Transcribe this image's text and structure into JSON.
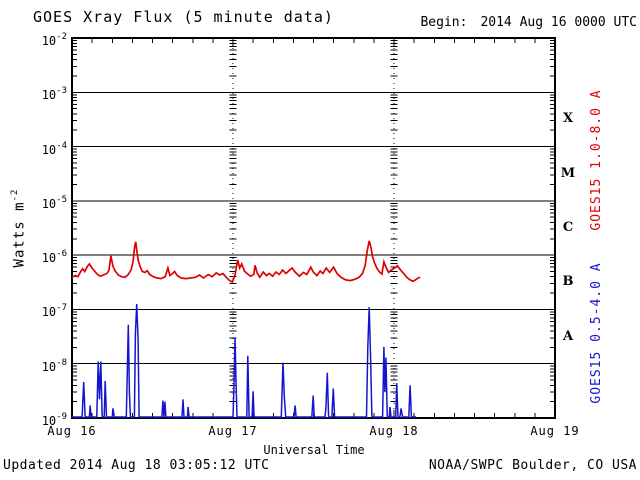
{
  "header": {
    "title": "GOES Xray Flux (5 minute data)",
    "begin_label": "Begin:",
    "begin_value": "2014 Aug 16 0000 UTC"
  },
  "footer": {
    "updated": "Updated 2014 Aug 18 03:05:12 UTC",
    "source": "NOAA/SWPC Boulder, CO USA"
  },
  "colors": {
    "long_channel": "#e00000",
    "short_channel": "#1515d0",
    "axis": "#000000",
    "background": "#ffffff"
  },
  "chart_data": {
    "type": "line",
    "title": "GOES Xray Flux (5 minute data)",
    "xlabel": "Universal Time",
    "ylabel": "Watts m^-2",
    "x_unit": "hours since 2014 Aug 16 0000 UTC",
    "x_range_hours": [
      0,
      72
    ],
    "x_ticks": [
      {
        "hours": 0,
        "label": "Aug 16"
      },
      {
        "hours": 24,
        "label": "Aug 17"
      },
      {
        "hours": 48,
        "label": "Aug 18"
      },
      {
        "hours": 72,
        "label": "Aug 19"
      }
    ],
    "x_minor_tick_interval_hours": 3,
    "day_gridlines_hours": [
      24,
      48
    ],
    "y_scale": "log",
    "ylim": [
      1e-09,
      0.01
    ],
    "y_tick_exponents": [
      -2,
      -3,
      -4,
      -5,
      -6,
      -7,
      -8,
      -9
    ],
    "grid": {
      "horizontal_decade_lines": true,
      "vertical_day_lines_dotted": true
    },
    "legend_position": "right-rotated",
    "flare_classes": [
      {
        "label": "X",
        "log10_center": -3.5
      },
      {
        "label": "M",
        "log10_center": -4.5
      },
      {
        "label": "C",
        "log10_center": -5.5
      },
      {
        "label": "B",
        "log10_center": -6.5
      },
      {
        "label": "A",
        "log10_center": -7.5
      }
    ],
    "series": [
      {
        "name": "GOES15 1.0-8.0 A",
        "color": "#e00000",
        "points": [
          [
            0.0,
            3.9e-07
          ],
          [
            0.5,
            4.2e-07
          ],
          [
            0.9,
            4e-07
          ],
          [
            1.3,
            5e-07
          ],
          [
            1.6,
            5.6e-07
          ],
          [
            1.9,
            5e-07
          ],
          [
            2.3,
            6.2e-07
          ],
          [
            2.6,
            6.9e-07
          ],
          [
            3.0,
            5.8e-07
          ],
          [
            3.4,
            5e-07
          ],
          [
            3.8,
            4.4e-07
          ],
          [
            4.2,
            4.1e-07
          ],
          [
            4.7,
            4.3e-07
          ],
          [
            5.2,
            4.6e-07
          ],
          [
            5.5,
            5.2e-07
          ],
          [
            5.8,
            9.7e-07
          ],
          [
            6.1,
            6.3e-07
          ],
          [
            6.4,
            5.2e-07
          ],
          [
            6.9,
            4.3e-07
          ],
          [
            7.4,
            4e-07
          ],
          [
            7.9,
            3.9e-07
          ],
          [
            8.4,
            4.4e-07
          ],
          [
            8.8,
            5.3e-07
          ],
          [
            9.1,
            7.5e-07
          ],
          [
            9.35,
            1.45e-06
          ],
          [
            9.5,
            1.76e-06
          ],
          [
            9.7,
            1.1e-06
          ],
          [
            9.9,
            7.8e-07
          ],
          [
            10.2,
            6e-07
          ],
          [
            10.5,
            5e-07
          ],
          [
            10.9,
            4.8e-07
          ],
          [
            11.2,
            5.2e-07
          ],
          [
            11.6,
            4.4e-07
          ],
          [
            12.1,
            4e-07
          ],
          [
            12.7,
            3.8e-07
          ],
          [
            13.3,
            3.7e-07
          ],
          [
            13.9,
            4e-07
          ],
          [
            14.3,
            5.8e-07
          ],
          [
            14.6,
            4.2e-07
          ],
          [
            15.0,
            4.6e-07
          ],
          [
            15.3,
            5e-07
          ],
          [
            15.7,
            4.2e-07
          ],
          [
            16.3,
            3.8e-07
          ],
          [
            17.0,
            3.7e-07
          ],
          [
            17.7,
            3.8e-07
          ],
          [
            18.4,
            3.9e-07
          ],
          [
            19.0,
            4.3e-07
          ],
          [
            19.6,
            3.8e-07
          ],
          [
            20.3,
            4.4e-07
          ],
          [
            20.9,
            4e-07
          ],
          [
            21.5,
            4.7e-07
          ],
          [
            22.0,
            4.3e-07
          ],
          [
            22.5,
            4.6e-07
          ],
          [
            23.0,
            3.9e-07
          ],
          [
            23.5,
            3.4e-07
          ],
          [
            23.9,
            3.2e-07
          ],
          [
            24.3,
            4.3e-07
          ],
          [
            24.7,
            8.1e-07
          ],
          [
            25.0,
            5.8e-07
          ],
          [
            25.3,
            6.9e-07
          ],
          [
            25.7,
            5.1e-07
          ],
          [
            26.1,
            4.6e-07
          ],
          [
            26.6,
            4.1e-07
          ],
          [
            27.1,
            4.4e-07
          ],
          [
            27.3,
            6.5e-07
          ],
          [
            27.6,
            4.7e-07
          ],
          [
            28.0,
            3.9e-07
          ],
          [
            28.5,
            4.9e-07
          ],
          [
            29.0,
            4.2e-07
          ],
          [
            29.4,
            4.6e-07
          ],
          [
            29.9,
            4.1e-07
          ],
          [
            30.4,
            4.9e-07
          ],
          [
            30.9,
            4.4e-07
          ],
          [
            31.4,
            5.3e-07
          ],
          [
            31.9,
            4.6e-07
          ],
          [
            32.3,
            5.1e-07
          ],
          [
            32.8,
            5.8e-07
          ],
          [
            33.3,
            4.8e-07
          ],
          [
            33.9,
            4.1e-07
          ],
          [
            34.5,
            4.8e-07
          ],
          [
            35.0,
            4.4e-07
          ],
          [
            35.6,
            6e-07
          ],
          [
            36.0,
            4.8e-07
          ],
          [
            36.5,
            4.2e-07
          ],
          [
            37.0,
            5.1e-07
          ],
          [
            37.4,
            4.6e-07
          ],
          [
            37.9,
            5.8e-07
          ],
          [
            38.4,
            4.8e-07
          ],
          [
            39.0,
            6e-07
          ],
          [
            39.5,
            4.6e-07
          ],
          [
            40.1,
            3.9e-07
          ],
          [
            40.8,
            3.5e-07
          ],
          [
            41.5,
            3.4e-07
          ],
          [
            42.2,
            3.6e-07
          ],
          [
            42.8,
            3.9e-07
          ],
          [
            43.3,
            4.6e-07
          ],
          [
            43.7,
            6.5e-07
          ],
          [
            44.0,
            1.2e-06
          ],
          [
            44.3,
            1.83e-06
          ],
          [
            44.55,
            1.4e-06
          ],
          [
            44.8,
            9.5e-07
          ],
          [
            45.1,
            7.2e-07
          ],
          [
            45.5,
            5.6e-07
          ],
          [
            45.9,
            4.8e-07
          ],
          [
            46.2,
            4.5e-07
          ],
          [
            46.5,
            7.5e-07
          ],
          [
            46.8,
            6e-07
          ],
          [
            47.2,
            4.8e-07
          ],
          [
            47.6,
            5.3e-07
          ],
          [
            48.1,
            5.8e-07
          ],
          [
            48.5,
            6.4e-07
          ],
          [
            49.0,
            5.3e-07
          ],
          [
            49.5,
            4.5e-07
          ],
          [
            49.9,
            3.9e-07
          ],
          [
            50.4,
            3.5e-07
          ],
          [
            50.8,
            3.3e-07
          ],
          [
            51.2,
            3.5e-07
          ],
          [
            51.6,
            3.8e-07
          ],
          [
            51.9,
            3.9e-07
          ]
        ]
      },
      {
        "name": "GOES15 0.5-4.0 A",
        "color": "#1515d0",
        "points": [
          [
            0.0,
            1e-09
          ],
          [
            1.5,
            1e-09
          ],
          [
            1.75,
            4.6e-09
          ],
          [
            1.95,
            1e-09
          ],
          [
            2.6,
            1e-09
          ],
          [
            2.7,
            1.7e-09
          ],
          [
            2.85,
            1e-09
          ],
          [
            3.7,
            1e-09
          ],
          [
            3.9,
            1.1e-08
          ],
          [
            4.1,
            2.2e-09
          ],
          [
            4.3,
            1.1e-08
          ],
          [
            4.5,
            1e-09
          ],
          [
            4.8,
            1e-09
          ],
          [
            4.95,
            4.8e-09
          ],
          [
            5.15,
            1e-09
          ],
          [
            6.0,
            1e-09
          ],
          [
            6.1,
            1.5e-09
          ],
          [
            6.3,
            1e-09
          ],
          [
            8.1,
            1e-09
          ],
          [
            8.25,
            7e-09
          ],
          [
            8.4,
            5.2e-08
          ],
          [
            8.55,
            3e-09
          ],
          [
            8.7,
            1e-09
          ],
          [
            9.3,
            1e-09
          ],
          [
            9.45,
            3.5e-08
          ],
          [
            9.65,
            1.26e-07
          ],
          [
            9.85,
            2.8e-08
          ],
          [
            10.0,
            1e-09
          ],
          [
            13.4,
            1e-09
          ],
          [
            13.55,
            2.1e-09
          ],
          [
            13.7,
            1e-09
          ],
          [
            13.85,
            2e-09
          ],
          [
            14.0,
            1e-09
          ],
          [
            16.4,
            1e-09
          ],
          [
            16.55,
            2.2e-09
          ],
          [
            16.7,
            1e-09
          ],
          [
            17.2,
            1e-09
          ],
          [
            17.3,
            1.6e-09
          ],
          [
            17.45,
            1e-09
          ],
          [
            24.0,
            1e-09
          ],
          [
            24.15,
            4e-09
          ],
          [
            24.3,
            3e-08
          ],
          [
            24.45,
            5e-09
          ],
          [
            24.6,
            1e-09
          ],
          [
            26.05,
            1e-09
          ],
          [
            26.2,
            1.4e-08
          ],
          [
            26.4,
            1e-09
          ],
          [
            26.85,
            1e-09
          ],
          [
            27.0,
            3.1e-09
          ],
          [
            27.15,
            1e-09
          ],
          [
            31.2,
            1e-09
          ],
          [
            31.45,
            1.05e-08
          ],
          [
            31.65,
            2.5e-09
          ],
          [
            31.85,
            1e-09
          ],
          [
            33.1,
            1e-09
          ],
          [
            33.25,
            1.7e-09
          ],
          [
            33.4,
            1e-09
          ],
          [
            35.75,
            1e-09
          ],
          [
            35.95,
            2.6e-09
          ],
          [
            36.1,
            1e-09
          ],
          [
            37.7,
            1e-09
          ],
          [
            37.85,
            1.5e-09
          ],
          [
            38.05,
            6.8e-09
          ],
          [
            38.25,
            1e-09
          ],
          [
            38.75,
            1e-09
          ],
          [
            38.95,
            3.5e-09
          ],
          [
            39.15,
            1e-09
          ],
          [
            43.9,
            1e-09
          ],
          [
            44.1,
            2e-08
          ],
          [
            44.3,
            1.1e-07
          ],
          [
            44.5,
            1.5e-08
          ],
          [
            44.7,
            1e-09
          ],
          [
            46.3,
            1e-09
          ],
          [
            46.5,
            2.05e-08
          ],
          [
            46.65,
            3e-09
          ],
          [
            46.8,
            1.3e-08
          ],
          [
            47.0,
            1e-09
          ],
          [
            47.3,
            1e-09
          ],
          [
            47.4,
            1.6e-09
          ],
          [
            47.55,
            1e-09
          ],
          [
            48.25,
            1e-09
          ],
          [
            48.4,
            4.4e-09
          ],
          [
            48.6,
            1e-09
          ],
          [
            48.9,
            1e-09
          ],
          [
            49.05,
            1.5e-09
          ],
          [
            49.3,
            1e-09
          ],
          [
            50.2,
            1e-09
          ],
          [
            50.4,
            4e-09
          ],
          [
            50.6,
            1e-09
          ],
          [
            51.3,
            1e-09
          ]
        ]
      }
    ]
  }
}
